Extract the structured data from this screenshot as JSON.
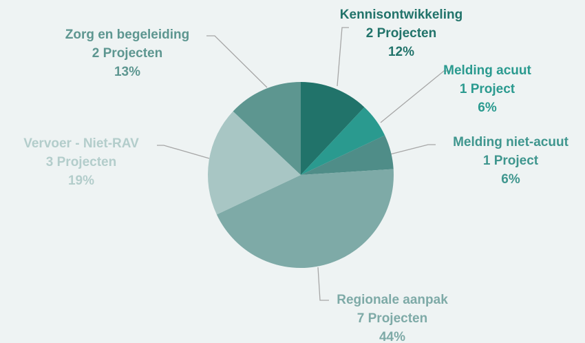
{
  "chart_data": {
    "type": "pie",
    "categories": [
      "Kennisontwikkeling",
      "Melding acuut",
      "Melding niet-acuut",
      "Regionale aanpak",
      "Vervoer - Niet-RAV",
      "Zorg en begeleiding"
    ],
    "details": [
      "2 Projecten",
      "1 Project",
      "1 Project",
      "7 Projecten",
      "3 Projecten",
      "2 Projecten"
    ],
    "values": [
      12,
      6,
      6,
      44,
      19,
      13
    ],
    "value_labels": [
      "12%",
      "6%",
      "6%",
      "44%",
      "19%",
      "13%"
    ],
    "colors": [
      "#21736a",
      "#2a9a8f",
      "#4f8d88",
      "#7eaaa7",
      "#a8c6c4",
      "#5d9690"
    ],
    "label_colors": [
      "#21736a",
      "#2a9a8f",
      "#3f968e",
      "#7eaaa7",
      "#b3cdcb",
      "#5d9690"
    ]
  }
}
